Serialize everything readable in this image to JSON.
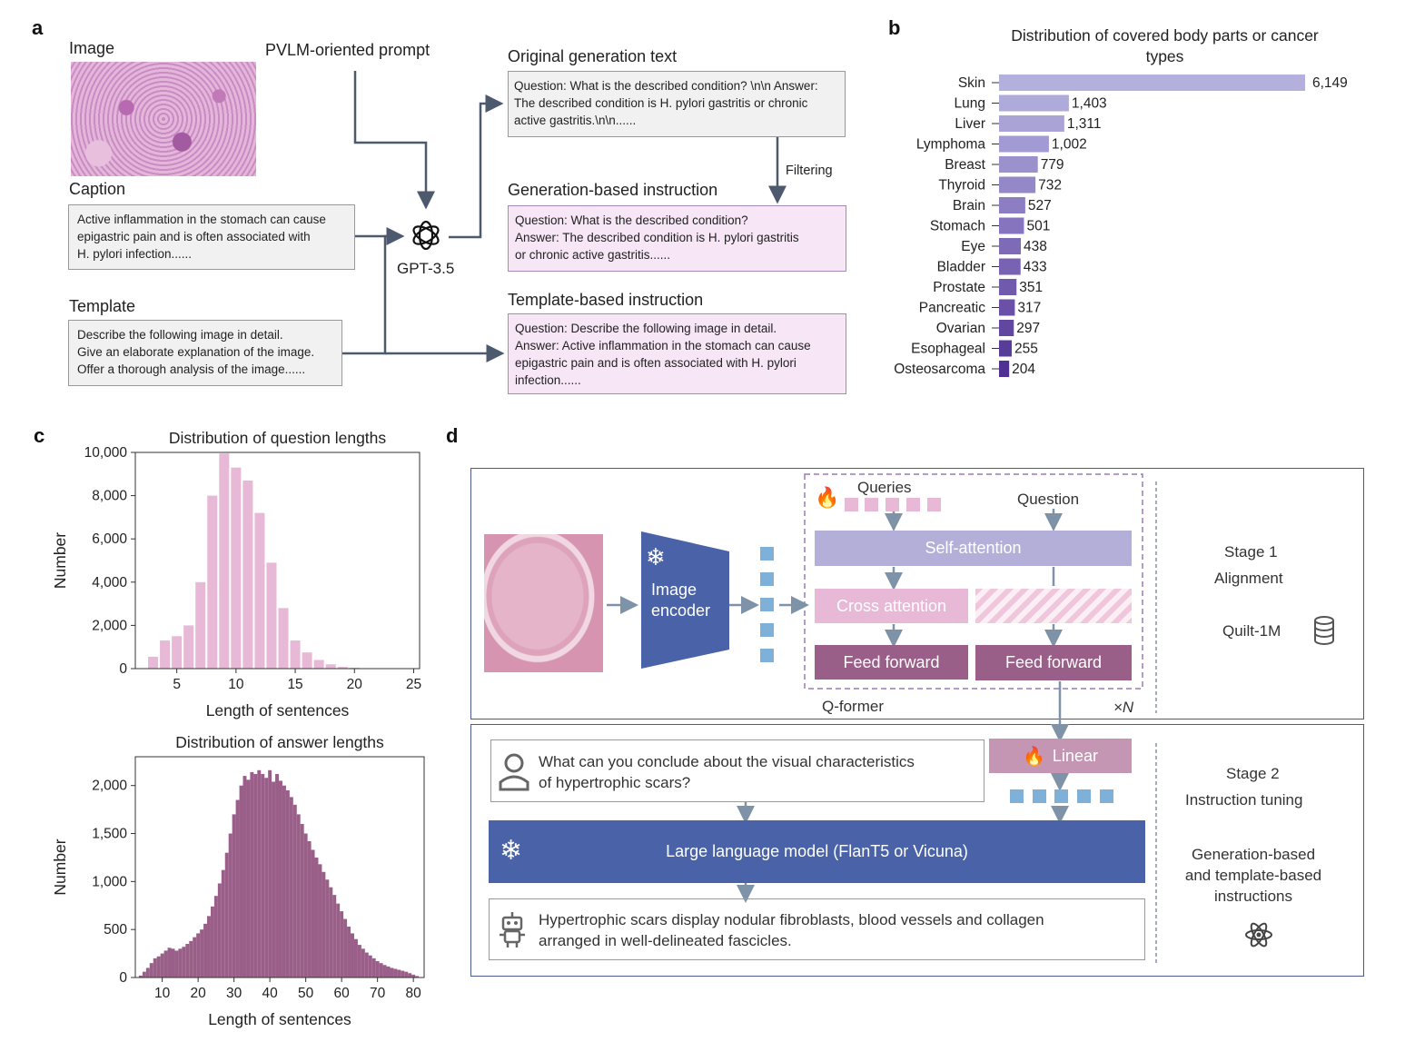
{
  "panel_labels": {
    "a": "a",
    "b": "b",
    "c": "c",
    "d": "d"
  },
  "panel_a": {
    "image_label": "Image",
    "prompt_label": "PVLM-oriented prompt",
    "caption_label": "Caption",
    "caption_lines": [
      "Active inflammation in the stomach can cause",
      "epigastric pain and is often associated with",
      "H. pylori infection......"
    ],
    "template_label": "Template",
    "template_lines": [
      "Describe the following image in detail.",
      "Give an elaborate explanation of the image.",
      "Offer a thorough analysis of the image......"
    ],
    "gpt_label": "GPT-3.5",
    "orig_title": "Original generation text",
    "orig_lines": [
      "Question: What is the described condition? \\n\\n Answer:",
      "The described condition is H. pylori gastritis or chronic",
      "active gastritis.\\n\\n......"
    ],
    "filtering_label": "Filtering",
    "gen_title": "Generation-based instruction",
    "gen_lines": [
      "Question: What is the described condition?",
      "Answer: The described condition is H. pylori gastritis",
      "or chronic active gastritis......"
    ],
    "tmpl_title": "Template-based instruction",
    "tmpl_lines": [
      "Question: Describe the following image in detail.",
      "Answer: Active inflammation in the stomach can cause",
      "epigastric pain and is often associated with H. pylori",
      "infection......"
    ]
  },
  "chart_data": [
    {
      "type": "bar",
      "orientation": "horizontal",
      "title": "Distribution of covered body parts or cancer types",
      "categories": [
        "Skin",
        "Lung",
        "Liver",
        "Lymphoma",
        "Breast",
        "Thyroid",
        "Brain",
        "Stomach",
        "Eye",
        "Bladder",
        "Prostate",
        "Pancreatic",
        "Ovarian",
        "Esophageal",
        "Osteosarcoma"
      ],
      "values": [
        6149,
        1403,
        1311,
        1002,
        779,
        732,
        527,
        501,
        438,
        433,
        351,
        317,
        297,
        255,
        204
      ],
      "value_labels": [
        "6,149",
        "1,403",
        "1,311",
        "1,002",
        "779",
        "732",
        "527",
        "501",
        "438",
        "433",
        "351",
        "317",
        "297",
        "255",
        "204"
      ],
      "colors": [
        "#b3b0dd",
        "#aeaad9",
        "#a9a3d6",
        "#a29ad2",
        "#9b91cd",
        "#9488c9",
        "#8d7dc3",
        "#8674be",
        "#7e6bb8",
        "#7862b3",
        "#705aad",
        "#6a50a7",
        "#6147a1",
        "#583c9a",
        "#4f3194"
      ]
    },
    {
      "type": "bar",
      "title": "Distribution of question lengths",
      "xlabel": "Length of sentences",
      "ylabel": "Number",
      "x": [
        3,
        4,
        5,
        6,
        7,
        8,
        9,
        10,
        11,
        12,
        13,
        14,
        15,
        16,
        17,
        18,
        19,
        20,
        21,
        22,
        23,
        24
      ],
      "values": [
        550,
        1300,
        1500,
        2000,
        4000,
        8000,
        9950,
        9300,
        8700,
        7200,
        4900,
        2800,
        1300,
        750,
        400,
        200,
        80,
        40,
        20,
        10,
        5,
        3
      ],
      "xlim": [
        1.5,
        25.5
      ],
      "ylim": [
        0,
        10000
      ],
      "xticks": [
        "5",
        "10",
        "15",
        "20",
        "25"
      ],
      "yticks": [
        "0",
        "2,000",
        "4,000",
        "6,000",
        "8,000",
        "10,000"
      ],
      "color": "#e8b9d6"
    },
    {
      "type": "bar",
      "title": "Distribution of answer lengths",
      "xlabel": "Length of sentences",
      "ylabel": "Number",
      "x": [
        4,
        5,
        6,
        7,
        8,
        9,
        10,
        11,
        12,
        13,
        14,
        15,
        16,
        17,
        18,
        19,
        20,
        21,
        22,
        23,
        24,
        25,
        26,
        27,
        28,
        29,
        30,
        31,
        32,
        33,
        34,
        35,
        36,
        37,
        38,
        39,
        40,
        41,
        42,
        43,
        44,
        45,
        46,
        47,
        48,
        49,
        50,
        51,
        52,
        53,
        54,
        55,
        56,
        57,
        58,
        59,
        60,
        61,
        62,
        63,
        64,
        65,
        66,
        67,
        68,
        69,
        70,
        71,
        72,
        73,
        74,
        75,
        76,
        77,
        78,
        79,
        80,
        81
      ],
      "values": [
        20,
        60,
        100,
        150,
        200,
        220,
        250,
        280,
        310,
        300,
        280,
        300,
        320,
        350,
        380,
        420,
        460,
        500,
        560,
        640,
        740,
        850,
        980,
        1120,
        1300,
        1500,
        1700,
        1850,
        2000,
        2100,
        2060,
        2140,
        2120,
        2160,
        2120,
        2080,
        2160,
        2040,
        2120,
        2050,
        2000,
        1950,
        1880,
        1800,
        1700,
        1600,
        1500,
        1420,
        1330,
        1250,
        1180,
        1100,
        1020,
        940,
        860,
        770,
        690,
        610,
        530,
        460,
        400,
        340,
        300,
        260,
        230,
        200,
        170,
        150,
        130,
        115,
        100,
        90,
        80,
        70,
        60,
        45,
        30,
        15
      ],
      "xlim": [
        2.5,
        83
      ],
      "ylim": [
        0,
        2300
      ],
      "xticks": [
        "10",
        "20",
        "30",
        "40",
        "50",
        "60",
        "70",
        "80"
      ],
      "yticks": [
        "0",
        "500",
        "1,000",
        "1,500",
        "2,000"
      ],
      "color": "#9a5f88"
    }
  ],
  "panel_d": {
    "queries_label": "Queries",
    "question_label": "Question",
    "image_encoder_label": [
      "Image",
      "encoder"
    ],
    "self_attention_label": "Self-attention",
    "cross_attention_label": "Cross attention",
    "feed_forward_label": "Feed forward",
    "qformer_label": "Q-former",
    "times_n_label": "×N",
    "stage1_label": "Stage 1",
    "stage1_sub": "Alignment",
    "dataset_label": "Quilt-1M",
    "linear_label": "Linear",
    "question_text_lines": [
      "What can you conclude about the visual characteristics",
      "of hypertrophic scars?"
    ],
    "llm_label": "Large language model (FlanT5 or Vicuna)",
    "answer_text_lines": [
      "Hypertrophic scars display nodular fibroblasts, blood vessels and collagen",
      "arranged in well-delineated fascicles."
    ],
    "stage2_label": "Stage 2",
    "stage2_sub": "Instruction tuning",
    "stage2_note_lines": [
      "Generation-based",
      "and template-based",
      "instructions"
    ],
    "icons": [
      "openai-logo-icon",
      "snowflake-icon",
      "flame-icon",
      "database-icon",
      "user-icon",
      "robot-icon",
      "atom-icon"
    ],
    "colors": {
      "encoder": "#4a63a8",
      "self_attention": "#b4afd9",
      "cross_attention": "#e8b9d6",
      "feed_forward": "#9a5f88",
      "linear": "#c496b4",
      "llm": "#4a63a8",
      "token": "#7fb0d8",
      "frame": "#4a5a8a"
    }
  }
}
